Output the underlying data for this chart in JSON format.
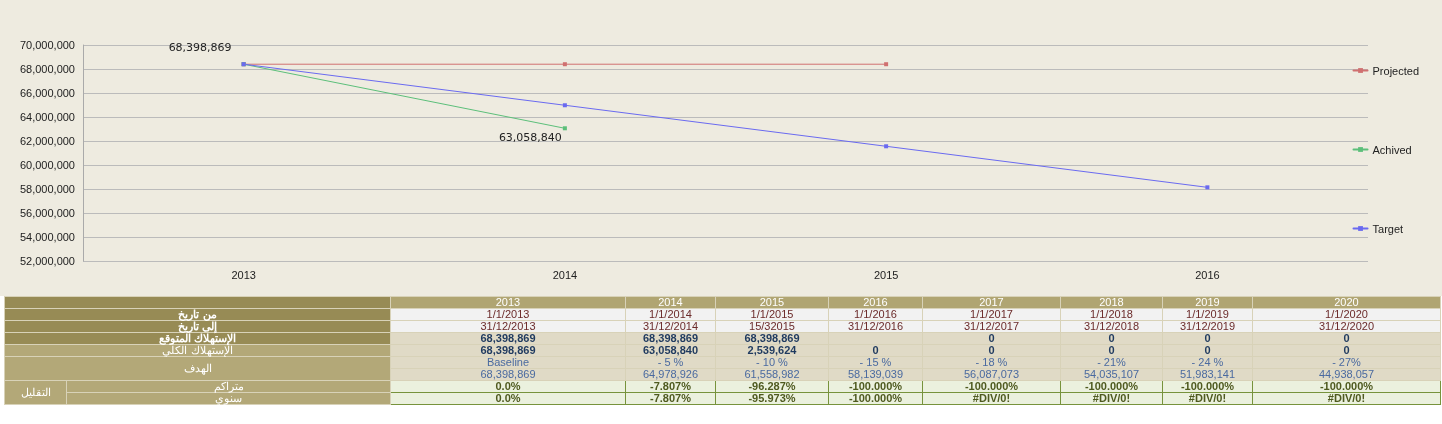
{
  "chart_data": {
    "type": "line",
    "categories": [
      "2013",
      "2014",
      "2015",
      "2016"
    ],
    "series": [
      {
        "name": "Projected",
        "color": "#d07070",
        "values": [
          68398869,
          68398869,
          68398869,
          null
        ]
      },
      {
        "name": "Achived",
        "color": "#5cbf7a",
        "values": [
          68398869,
          63058840,
          null,
          null
        ]
      },
      {
        "name": "Target",
        "color": "#6a6af0",
        "values": [
          68398869,
          64978926,
          61558982,
          58139039
        ]
      }
    ],
    "ylim": [
      52000000,
      70000000
    ],
    "yticks": [
      {
        "value": 52000000,
        "label": "52,000,000"
      },
      {
        "value": 54000000,
        "label": "54,000,000"
      },
      {
        "value": 56000000,
        "label": "56,000,000"
      },
      {
        "value": 58000000,
        "label": "58,000,000"
      },
      {
        "value": 60000000,
        "label": "60,000,000"
      },
      {
        "value": 62000000,
        "label": "62,000,000"
      },
      {
        "value": 64000000,
        "label": "64,000,000"
      },
      {
        "value": 66000000,
        "label": "66,000,000"
      },
      {
        "value": 68000000,
        "label": "68,000,000"
      },
      {
        "value": 70000000,
        "label": "70,000,000"
      }
    ],
    "grid": "y",
    "legend": "right",
    "marker": "square",
    "line_style": "solid",
    "annotations": [
      {
        "text": "68,398,869",
        "x": "2013",
        "y": 68398869
      },
      {
        "text": "63,058,840",
        "x": "2014",
        "y": 63058840
      },
      "2013",
      "2014",
      "2015",
      "2016",
      "2017",
      "2018",
      "2019",
      "2020",
      "من تاريخ",
      "1/1/2013",
      "1/1/2014",
      "1/1/2015",
      "1/1/2016",
      "1/1/2017",
      "1/1/2018",
      "1/1/2019",
      "1/1/2020",
      "إلى تاريخ",
      "31/12/2013",
      "31/12/2014",
      "15/32015",
      "31/12/2016",
      "31/12/2017",
      "31/12/2018",
      "31/12/2019",
      "31/12/2020",
      "الإستهلاك المتوقع",
      "68,398,869",
      "68,398,869",
      "68,398,869",
      "0",
      "0",
      "0",
      "0",
      "الإستهلاك الكلي",
      "68,398,869",
      "63,058,840",
      "2,539,624",
      "0",
      "0",
      "0",
      "0",
      "0",
      "الهدف",
      "Baseline",
      "- 5 %",
      "- 10 %",
      "- 15 %",
      "- 18 %",
      "- 21%",
      "- 24 %",
      "- 27%",
      "68,398,869",
      "64,978,926",
      "61,558,982",
      "58,139,039",
      "56,087,073",
      "54,035,107",
      "51,983,141",
      "44,938,057",
      "التقليل",
      "متراكم",
      "0.0%",
      "-7.807%",
      "-96.287%",
      "-100.000%",
      "-100.000%",
      "-100.000%",
      "-100.000%",
      "-100.000%",
      "سنوي",
      "0.0%",
      "-7.807%",
      "-95.973%",
      "-100.000%",
      "#DIV/0!",
      "#DIV/0!",
      "#DIV/0!",
      "#DIV/0!"
    ]
  }
}
